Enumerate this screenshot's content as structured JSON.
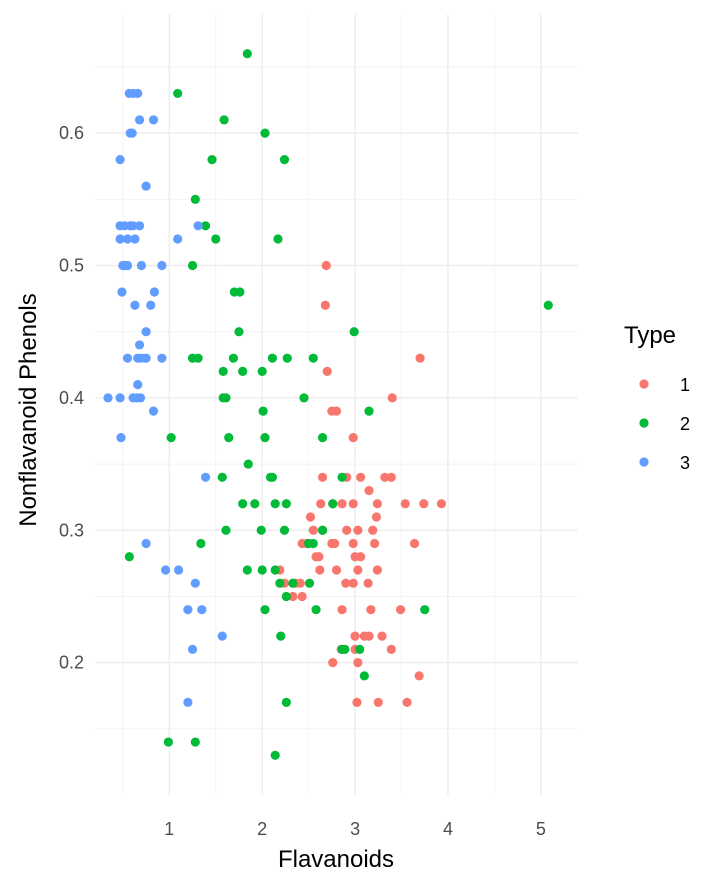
{
  "chart_data": {
    "type": "scatter",
    "title": "",
    "xlabel": "Flavanoids",
    "ylabel": "Nonflavanoid Phenols",
    "xlim": [
      0.2,
      5.4
    ],
    "ylim": [
      0.1,
      0.69
    ],
    "x_ticks": [
      1,
      2,
      3,
      4,
      5
    ],
    "x_tick_labels": [
      "1",
      "2",
      "3",
      "4",
      "5"
    ],
    "y_ticks": [
      0.2,
      0.3,
      0.4,
      0.5,
      0.6
    ],
    "y_tick_labels": [
      "0.2",
      "0.3",
      "0.4",
      "0.5",
      "0.6"
    ],
    "grid": true,
    "legend": {
      "title": "Type",
      "position": "right"
    },
    "series": [
      {
        "name": "1",
        "color": "#F8766D",
        "points": [
          [
            2.69,
            0.5
          ],
          [
            3.7,
            0.43
          ],
          [
            2.68,
            0.47
          ],
          [
            2.7,
            0.42
          ],
          [
            2.75,
            0.39
          ],
          [
            2.8,
            0.39
          ],
          [
            3.4,
            0.4
          ],
          [
            2.98,
            0.37
          ],
          [
            2.65,
            0.34
          ],
          [
            3.06,
            0.34
          ],
          [
            2.91,
            0.34
          ],
          [
            3.32,
            0.34
          ],
          [
            3.39,
            0.34
          ],
          [
            3.15,
            0.33
          ],
          [
            2.98,
            0.32
          ],
          [
            3.24,
            0.32
          ],
          [
            2.63,
            0.32
          ],
          [
            2.52,
            0.31
          ],
          [
            2.76,
            0.32
          ],
          [
            2.86,
            0.32
          ],
          [
            3.54,
            0.32
          ],
          [
            3.74,
            0.32
          ],
          [
            3.93,
            0.32
          ],
          [
            2.55,
            0.3
          ],
          [
            2.65,
            0.3
          ],
          [
            2.91,
            0.3
          ],
          [
            3.03,
            0.3
          ],
          [
            3.23,
            0.31
          ],
          [
            3.19,
            0.3
          ],
          [
            2.48,
            0.29
          ],
          [
            2.43,
            0.29
          ],
          [
            2.78,
            0.29
          ],
          [
            2.98,
            0.29
          ],
          [
            3.21,
            0.29
          ],
          [
            3.64,
            0.29
          ],
          [
            2.58,
            0.28
          ],
          [
            2.61,
            0.28
          ],
          [
            3.0,
            0.28
          ],
          [
            3.06,
            0.28
          ],
          [
            2.62,
            0.27
          ],
          [
            2.8,
            0.27
          ],
          [
            3.03,
            0.27
          ],
          [
            3.24,
            0.27
          ],
          [
            2.19,
            0.27
          ],
          [
            2.24,
            0.26
          ],
          [
            2.36,
            0.26
          ],
          [
            2.41,
            0.26
          ],
          [
            2.9,
            0.26
          ],
          [
            2.98,
            0.26
          ],
          [
            3.14,
            0.26
          ],
          [
            2.33,
            0.25
          ],
          [
            2.43,
            0.25
          ],
          [
            3.17,
            0.24
          ],
          [
            3.49,
            0.24
          ],
          [
            3.0,
            0.22
          ],
          [
            3.1,
            0.22
          ],
          [
            3.15,
            0.22
          ],
          [
            3.29,
            0.22
          ],
          [
            3.0,
            0.21
          ],
          [
            2.85,
            0.21
          ],
          [
            3.39,
            0.21
          ],
          [
            2.76,
            0.2
          ],
          [
            3.03,
            0.2
          ],
          [
            3.69,
            0.19
          ],
          [
            3.02,
            0.17
          ],
          [
            3.25,
            0.17
          ],
          [
            3.56,
            0.17
          ],
          [
            2.75,
            0.29
          ],
          [
            2.86,
            0.24
          ]
        ]
      },
      {
        "name": "2",
        "color": "#00BA38",
        "points": [
          [
            1.84,
            0.66
          ],
          [
            1.09,
            0.63
          ],
          [
            1.59,
            0.61
          ],
          [
            2.03,
            0.6
          ],
          [
            1.46,
            0.58
          ],
          [
            2.24,
            0.58
          ],
          [
            1.28,
            0.55
          ],
          [
            1.39,
            0.53
          ],
          [
            1.5,
            0.52
          ],
          [
            2.17,
            0.52
          ],
          [
            1.25,
            0.5
          ],
          [
            1.7,
            0.48
          ],
          [
            1.76,
            0.48
          ],
          [
            5.08,
            0.47
          ],
          [
            1.75,
            0.45
          ],
          [
            2.99,
            0.45
          ],
          [
            1.25,
            0.43
          ],
          [
            1.31,
            0.43
          ],
          [
            1.69,
            0.43
          ],
          [
            2.11,
            0.43
          ],
          [
            2.27,
            0.43
          ],
          [
            2.55,
            0.43
          ],
          [
            1.58,
            0.42
          ],
          [
            1.79,
            0.42
          ],
          [
            2.0,
            0.42
          ],
          [
            1.58,
            0.4
          ],
          [
            1.61,
            0.4
          ],
          [
            2.45,
            0.4
          ],
          [
            2.01,
            0.39
          ],
          [
            3.15,
            0.39
          ],
          [
            1.02,
            0.37
          ],
          [
            1.64,
            0.37
          ],
          [
            2.03,
            0.37
          ],
          [
            2.65,
            0.37
          ],
          [
            1.85,
            0.35
          ],
          [
            1.57,
            0.34
          ],
          [
            2.09,
            0.34
          ],
          [
            2.11,
            0.34
          ],
          [
            2.86,
            0.34
          ],
          [
            1.79,
            0.32
          ],
          [
            1.92,
            0.32
          ],
          [
            2.14,
            0.32
          ],
          [
            2.26,
            0.32
          ],
          [
            2.76,
            0.32
          ],
          [
            1.99,
            0.3
          ],
          [
            1.61,
            0.3
          ],
          [
            2.65,
            0.3
          ],
          [
            2.24,
            0.3
          ],
          [
            1.34,
            0.29
          ],
          [
            2.5,
            0.29
          ],
          [
            2.55,
            0.29
          ],
          [
            0.57,
            0.28
          ],
          [
            1.84,
            0.27
          ],
          [
            2.0,
            0.27
          ],
          [
            2.14,
            0.27
          ],
          [
            2.19,
            0.26
          ],
          [
            2.33,
            0.26
          ],
          [
            2.51,
            0.26
          ],
          [
            2.26,
            0.25
          ],
          [
            2.03,
            0.24
          ],
          [
            2.58,
            0.24
          ],
          [
            3.75,
            0.24
          ],
          [
            2.2,
            0.22
          ],
          [
            2.86,
            0.21
          ],
          [
            2.89,
            0.21
          ],
          [
            3.05,
            0.21
          ],
          [
            3.1,
            0.19
          ],
          [
            2.26,
            0.17
          ],
          [
            0.99,
            0.14
          ],
          [
            1.28,
            0.14
          ],
          [
            2.14,
            0.13
          ]
        ]
      },
      {
        "name": "3",
        "color": "#619CFF",
        "points": [
          [
            0.57,
            0.63
          ],
          [
            0.61,
            0.63
          ],
          [
            0.66,
            0.63
          ],
          [
            0.58,
            0.6
          ],
          [
            0.6,
            0.6
          ],
          [
            0.68,
            0.61
          ],
          [
            0.83,
            0.61
          ],
          [
            0.47,
            0.58
          ],
          [
            0.75,
            0.56
          ],
          [
            0.47,
            0.53
          ],
          [
            0.52,
            0.53
          ],
          [
            0.58,
            0.53
          ],
          [
            0.61,
            0.53
          ],
          [
            0.68,
            0.53
          ],
          [
            1.31,
            0.53
          ],
          [
            0.47,
            0.52
          ],
          [
            0.55,
            0.52
          ],
          [
            0.63,
            0.52
          ],
          [
            1.09,
            0.52
          ],
          [
            0.5,
            0.5
          ],
          [
            0.52,
            0.5
          ],
          [
            0.55,
            0.5
          ],
          [
            0.7,
            0.5
          ],
          [
            0.92,
            0.5
          ],
          [
            0.49,
            0.48
          ],
          [
            0.84,
            0.48
          ],
          [
            0.63,
            0.47
          ],
          [
            0.8,
            0.47
          ],
          [
            0.75,
            0.45
          ],
          [
            0.68,
            0.44
          ],
          [
            0.55,
            0.43
          ],
          [
            0.66,
            0.43
          ],
          [
            0.7,
            0.43
          ],
          [
            0.75,
            0.43
          ],
          [
            0.92,
            0.43
          ],
          [
            0.66,
            0.41
          ],
          [
            0.34,
            0.4
          ],
          [
            0.47,
            0.4
          ],
          [
            0.61,
            0.4
          ],
          [
            0.65,
            0.4
          ],
          [
            0.69,
            0.4
          ],
          [
            0.83,
            0.39
          ],
          [
            0.48,
            0.37
          ],
          [
            1.39,
            0.34
          ],
          [
            0.75,
            0.29
          ],
          [
            0.96,
            0.27
          ],
          [
            1.1,
            0.27
          ],
          [
            1.28,
            0.26
          ],
          [
            1.2,
            0.24
          ],
          [
            1.35,
            0.24
          ],
          [
            1.57,
            0.22
          ],
          [
            1.25,
            0.21
          ],
          [
            1.2,
            0.17
          ]
        ]
      }
    ]
  }
}
